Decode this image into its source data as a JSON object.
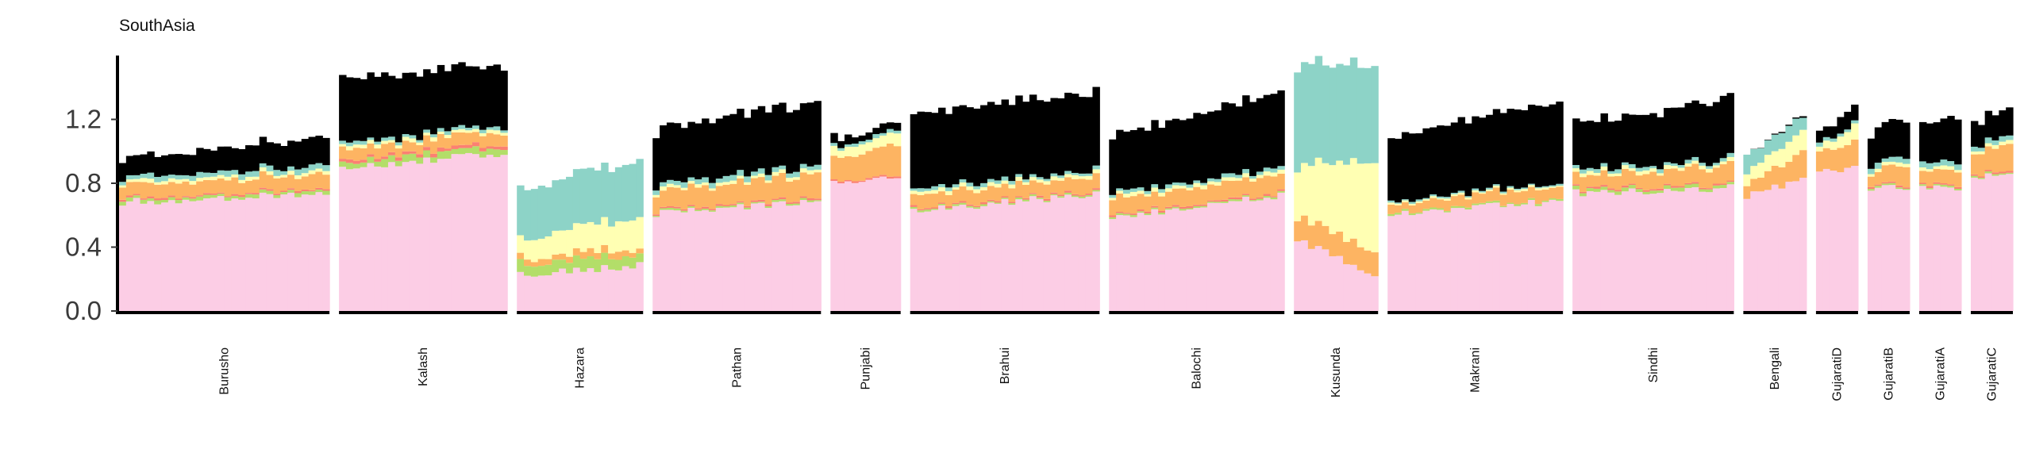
{
  "chart_data": {
    "type": "bar",
    "title": "SouthAsia",
    "stacked": true,
    "ylim": [
      0,
      1.6
    ],
    "yticks": [
      {
        "value": 0.0,
        "label": "0.0"
      },
      {
        "value": 0.4,
        "label": "0.4"
      },
      {
        "value": 0.8,
        "label": "0.8"
      },
      {
        "value": 1.2,
        "label": "1.2"
      }
    ],
    "grid": false,
    "legend": "none",
    "colors": [
      "#FCCDE5",
      "#B3DE69",
      "#80B1D3",
      "#FB8072",
      "#FDB462",
      "#FFFFB3",
      "#8DD3C7"
    ],
    "groups": [
      {
        "label": "Burusho",
        "n": 30,
        "base": [
          0.68,
          0.74
        ],
        "c": [
          0.02,
          0.0,
          0.01,
          0.09,
          0.02,
          0.03,
          [
            0.11,
            0.18
          ]
        ]
      },
      {
        "label": "Kalash",
        "n": 24,
        "base": [
          0.9,
          0.99
        ],
        "c": [
          0.04,
          0.0,
          0.02,
          0.07,
          0.02,
          0.02,
          [
            0.4,
            0.38
          ]
        ]
      },
      {
        "label": "Hazara",
        "n": 18,
        "base": [
          0.22,
          0.29
        ],
        "c": [
          0.07,
          0.0,
          0.0,
          0.04,
          [
            0.12,
            0.2
          ],
          [
            0.31,
            0.36
          ],
          0.0
        ]
      },
      {
        "label": "Pathan",
        "n": 24,
        "base": [
          0.61,
          0.68
        ],
        "c": [
          0.01,
          0.0,
          0.01,
          [
            0.11,
            0.15
          ],
          0.02,
          0.03,
          [
            0.34,
            0.4
          ]
        ]
      },
      {
        "label": "Punjabi",
        "n": 10,
        "base": [
          0.8,
          0.85
        ],
        "c": [
          0.0,
          0.0,
          0.01,
          [
            0.14,
            0.2
          ],
          [
            0.05,
            0.08
          ],
          0.02,
          0.05
        ]
      },
      {
        "label": "Brahui",
        "n": 27,
        "base": [
          0.63,
          0.73
        ],
        "c": [
          0.01,
          0.0,
          0.01,
          [
            0.08,
            0.09
          ],
          0.02,
          0.02,
          [
            0.47,
            0.49
          ]
        ]
      },
      {
        "label": "Balochi",
        "n": 25,
        "base": [
          0.59,
          0.72
        ],
        "c": [
          0.01,
          0.0,
          0.01,
          [
            0.1,
            0.11
          ],
          0.02,
          0.02,
          [
            0.36,
            0.47
          ]
        ]
      },
      {
        "label": "Kusunda",
        "n": 12,
        "base": [
          0.44,
          0.23
        ],
        "c": [
          0.0,
          0.0,
          0.0,
          [
            0.14,
            0.16
          ],
          [
            0.32,
            0.56
          ],
          [
            0.63,
            0.61
          ],
          0.0
        ]
      },
      {
        "label": "Makrani",
        "n": 25,
        "base": [
          0.6,
          0.69
        ],
        "c": [
          0.01,
          0.0,
          0.0,
          [
            0.05,
            0.08
          ],
          0.01,
          0.01,
          [
            0.4,
            0.52
          ]
        ]
      },
      {
        "label": "Sindhi",
        "n": 23,
        "base": [
          0.74,
          0.77
        ],
        "c": [
          0.02,
          0.0,
          0.01,
          [
            0.08,
            0.11
          ],
          0.02,
          0.02,
          [
            0.29,
            0.38
          ]
        ]
      },
      {
        "label": "Bengali",
        "n": 9,
        "base": [
          0.72,
          0.82
        ],
        "c": [
          0.0,
          0.0,
          0.0,
          [
            0.08,
            0.16
          ],
          [
            0.08,
            0.13
          ],
          [
            0.11,
            0.09
          ],
          [
            0.0,
            0.01
          ]
        ]
      },
      {
        "label": "GujaratiD",
        "n": 6,
        "base": [
          0.88,
          0.9
        ],
        "c": [
          0.0,
          0.0,
          0.0,
          [
            0.12,
            0.15
          ],
          [
            0.04,
            0.09
          ],
          0.02,
          [
            0.07,
            0.11
          ]
        ]
      },
      {
        "label": "GujaratiB",
        "n": 6,
        "base": [
          0.77,
          0.78
        ],
        "c": [
          0.01,
          0.0,
          0.01,
          [
            0.08,
            0.12
          ],
          0.02,
          0.03,
          [
            0.2,
            0.24
          ]
        ]
      },
      {
        "label": "GujaratiA",
        "n": 6,
        "base": [
          0.76,
          0.78
        ],
        "c": [
          0.01,
          0.0,
          0.01,
          [
            0.09,
            0.1
          ],
          0.02,
          0.03,
          [
            0.24,
            0.28
          ]
        ]
      },
      {
        "label": "GujaratiC",
        "n": 6,
        "base": [
          0.84,
          0.87
        ],
        "c": [
          0.01,
          0.0,
          0.01,
          [
            0.13,
            0.16
          ],
          0.02,
          0.03,
          [
            0.15,
            0.17
          ]
        ]
      }
    ]
  }
}
